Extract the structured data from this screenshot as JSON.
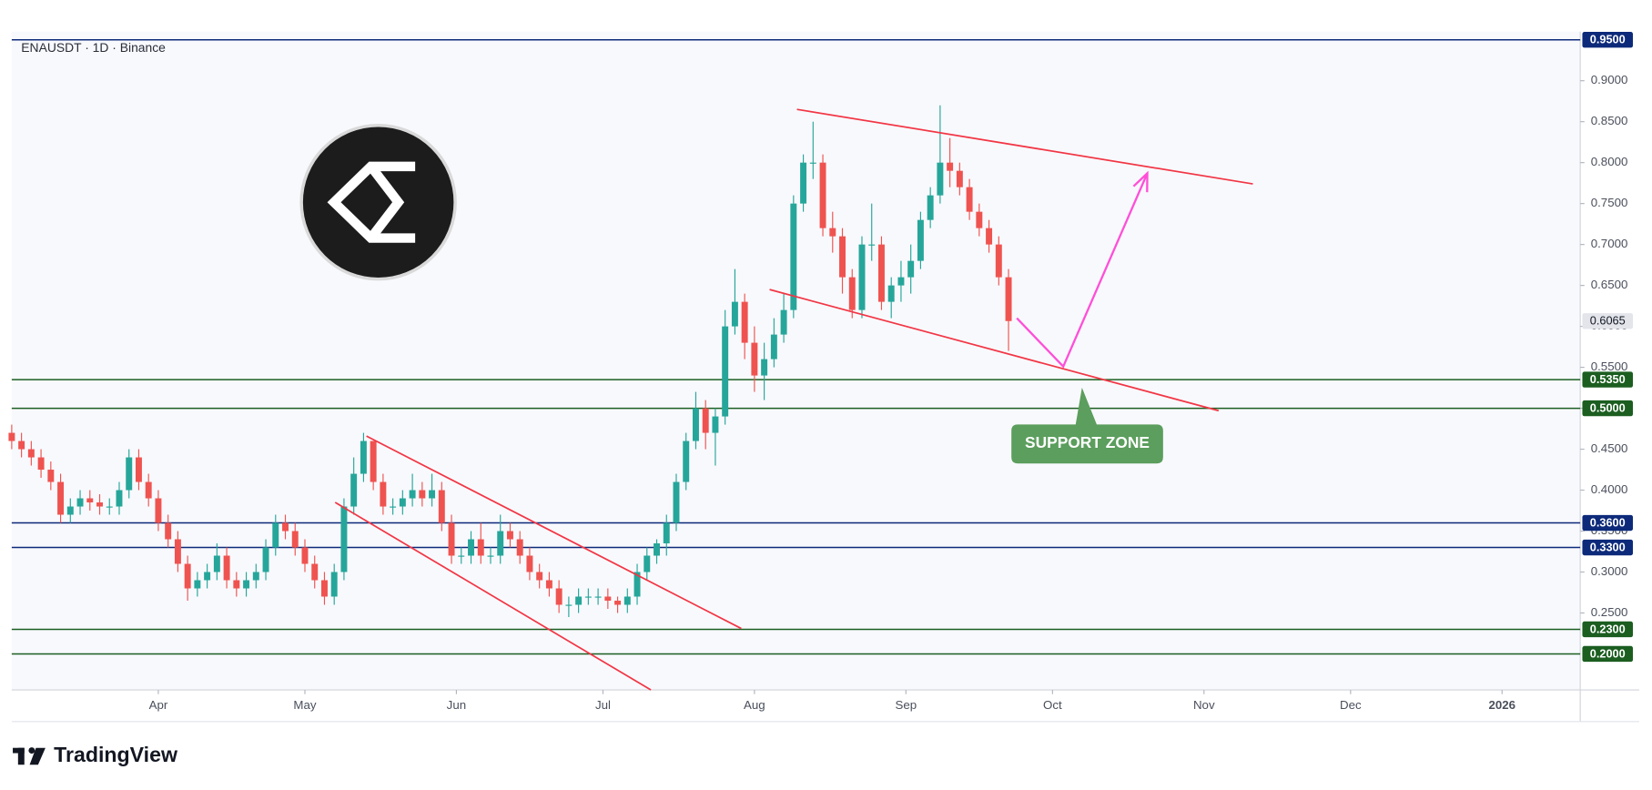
{
  "chart_data": {
    "type": "candlestick",
    "title": "ENAUSDT · 1D · Binance",
    "x": [
      0,
      2,
      4,
      6,
      8,
      10,
      12,
      14,
      16,
      18,
      20,
      22,
      24,
      26,
      28,
      30,
      32,
      34,
      36,
      38,
      40,
      42,
      44,
      46,
      48,
      50,
      52,
      54,
      56,
      58,
      60,
      62,
      64,
      66,
      68,
      70,
      72,
      74,
      76,
      78,
      80,
      82,
      84,
      86,
      88,
      90,
      92,
      94,
      96,
      98,
      100,
      102,
      104,
      106,
      108,
      110,
      112,
      114,
      116,
      118,
      120,
      122,
      124,
      126,
      128,
      130,
      132,
      134,
      136,
      138,
      140,
      142,
      144,
      146,
      148,
      150,
      152,
      154,
      156,
      158,
      160,
      162,
      164,
      166,
      168,
      170,
      172,
      174,
      176,
      178,
      180,
      182,
      184,
      186,
      188,
      190,
      192,
      194,
      196,
      198,
      200,
      202,
      204
    ],
    "open": [
      0.47,
      0.46,
      0.45,
      0.44,
      0.425,
      0.41,
      0.37,
      0.38,
      0.39,
      0.385,
      0.38,
      0.38,
      0.4,
      0.44,
      0.41,
      0.39,
      0.36,
      0.34,
      0.31,
      0.28,
      0.29,
      0.3,
      0.32,
      0.29,
      0.28,
      0.29,
      0.3,
      0.33,
      0.36,
      0.35,
      0.33,
      0.31,
      0.29,
      0.27,
      0.3,
      0.38,
      0.42,
      0.46,
      0.41,
      0.38,
      0.38,
      0.39,
      0.4,
      0.39,
      0.4,
      0.36,
      0.32,
      0.32,
      0.34,
      0.32,
      0.32,
      0.35,
      0.34,
      0.32,
      0.3,
      0.29,
      0.28,
      0.26,
      0.26,
      0.27,
      0.27,
      0.27,
      0.265,
      0.26,
      0.27,
      0.3,
      0.32,
      0.335,
      0.36,
      0.41,
      0.46,
      0.5,
      0.47,
      0.49,
      0.6,
      0.63,
      0.58,
      0.54,
      0.56,
      0.59,
      0.62,
      0.75,
      0.8,
      0.8,
      0.72,
      0.71,
      0.66,
      0.62,
      0.7,
      0.7,
      0.63,
      0.65,
      0.66,
      0.68,
      0.73,
      0.76,
      0.8,
      0.79,
      0.77,
      0.74,
      0.72,
      0.7,
      0.66
    ],
    "high": [
      0.48,
      0.47,
      0.46,
      0.45,
      0.435,
      0.42,
      0.39,
      0.4,
      0.4,
      0.395,
      0.39,
      0.41,
      0.45,
      0.45,
      0.42,
      0.4,
      0.37,
      0.35,
      0.32,
      0.3,
      0.31,
      0.335,
      0.33,
      0.3,
      0.3,
      0.31,
      0.34,
      0.37,
      0.37,
      0.36,
      0.34,
      0.32,
      0.3,
      0.31,
      0.39,
      0.44,
      0.47,
      0.46,
      0.42,
      0.39,
      0.4,
      0.42,
      0.41,
      0.42,
      0.41,
      0.37,
      0.33,
      0.35,
      0.36,
      0.33,
      0.37,
      0.36,
      0.35,
      0.33,
      0.31,
      0.3,
      0.29,
      0.27,
      0.28,
      0.28,
      0.28,
      0.28,
      0.27,
      0.28,
      0.31,
      0.33,
      0.34,
      0.37,
      0.42,
      0.47,
      0.52,
      0.51,
      0.5,
      0.62,
      0.67,
      0.64,
      0.6,
      0.58,
      0.61,
      0.64,
      0.76,
      0.81,
      0.85,
      0.81,
      0.74,
      0.72,
      0.67,
      0.71,
      0.75,
      0.71,
      0.66,
      0.68,
      0.7,
      0.74,
      0.77,
      0.87,
      0.83,
      0.8,
      0.78,
      0.75,
      0.73,
      0.71,
      0.67
    ],
    "low": [
      0.45,
      0.44,
      0.43,
      0.415,
      0.4,
      0.36,
      0.36,
      0.37,
      0.375,
      0.37,
      0.37,
      0.37,
      0.39,
      0.4,
      0.38,
      0.35,
      0.33,
      0.3,
      0.265,
      0.27,
      0.28,
      0.29,
      0.28,
      0.27,
      0.27,
      0.28,
      0.29,
      0.32,
      0.34,
      0.32,
      0.3,
      0.28,
      0.26,
      0.26,
      0.29,
      0.37,
      0.41,
      0.4,
      0.37,
      0.37,
      0.37,
      0.38,
      0.38,
      0.38,
      0.35,
      0.31,
      0.31,
      0.31,
      0.31,
      0.31,
      0.31,
      0.33,
      0.31,
      0.29,
      0.28,
      0.27,
      0.25,
      0.245,
      0.25,
      0.26,
      0.26,
      0.255,
      0.25,
      0.25,
      0.26,
      0.29,
      0.31,
      0.32,
      0.35,
      0.4,
      0.45,
      0.45,
      0.43,
      0.48,
      0.59,
      0.56,
      0.52,
      0.51,
      0.55,
      0.58,
      0.61,
      0.74,
      0.78,
      0.71,
      0.69,
      0.64,
      0.61,
      0.61,
      0.68,
      0.62,
      0.61,
      0.63,
      0.64,
      0.67,
      0.72,
      0.75,
      0.77,
      0.76,
      0.73,
      0.71,
      0.69,
      0.65,
      0.57
    ],
    "close": [
      0.46,
      0.45,
      0.44,
      0.425,
      0.41,
      0.37,
      0.38,
      0.39,
      0.385,
      0.38,
      0.38,
      0.4,
      0.44,
      0.41,
      0.39,
      0.36,
      0.34,
      0.31,
      0.28,
      0.29,
      0.3,
      0.32,
      0.29,
      0.28,
      0.29,
      0.3,
      0.33,
      0.36,
      0.35,
      0.33,
      0.31,
      0.29,
      0.27,
      0.3,
      0.38,
      0.42,
      0.46,
      0.41,
      0.38,
      0.38,
      0.39,
      0.4,
      0.39,
      0.4,
      0.36,
      0.32,
      0.32,
      0.34,
      0.32,
      0.32,
      0.35,
      0.34,
      0.32,
      0.3,
      0.29,
      0.28,
      0.26,
      0.26,
      0.27,
      0.27,
      0.27,
      0.265,
      0.26,
      0.27,
      0.3,
      0.32,
      0.335,
      0.36,
      0.41,
      0.46,
      0.5,
      0.47,
      0.49,
      0.6,
      0.63,
      0.58,
      0.54,
      0.56,
      0.59,
      0.62,
      0.75,
      0.8,
      0.8,
      0.72,
      0.71,
      0.66,
      0.62,
      0.7,
      0.7,
      0.63,
      0.65,
      0.66,
      0.68,
      0.73,
      0.76,
      0.8,
      0.79,
      0.77,
      0.74,
      0.72,
      0.7,
      0.66,
      0.6065
    ],
    "up_color": "#26a69a",
    "down_color": "#ef5350",
    "xlim": [
      0,
      321
    ],
    "ylim": [
      0.156,
      0.96
    ],
    "xticks": [
      {
        "value": 30,
        "label": "Apr"
      },
      {
        "value": 60,
        "label": "May"
      },
      {
        "value": 91,
        "label": "Jun"
      },
      {
        "value": 121,
        "label": "Jul"
      },
      {
        "value": 152,
        "label": "Aug"
      },
      {
        "value": 183,
        "label": "Sep"
      },
      {
        "value": 213,
        "label": "Oct"
      },
      {
        "value": 244,
        "label": "Nov"
      },
      {
        "value": 274,
        "label": "Dec"
      },
      {
        "value": 305,
        "label": "2026"
      }
    ],
    "yticks": [
      {
        "value": 0.25,
        "label": "0.2500"
      },
      {
        "value": 0.3,
        "label": "0.3000"
      },
      {
        "value": 0.35,
        "label": "0.3500"
      },
      {
        "value": 0.4,
        "label": "0.4000"
      },
      {
        "value": 0.45,
        "label": "0.4500"
      },
      {
        "value": 0.5,
        "label": "0.5000"
      },
      {
        "value": 0.55,
        "label": "0.5500"
      },
      {
        "value": 0.6,
        "label": "0.6000"
      },
      {
        "value": 0.65,
        "label": "0.6500"
      },
      {
        "value": 0.7,
        "label": "0.7000"
      },
      {
        "value": 0.75,
        "label": "0.7500"
      },
      {
        "value": 0.8,
        "label": "0.8000"
      },
      {
        "value": 0.85,
        "label": "0.8500"
      },
      {
        "value": 0.9,
        "label": "0.9000"
      }
    ],
    "levels": [
      {
        "value": 0.95,
        "label": "0.9500",
        "color": "#0d2a7a"
      },
      {
        "value": 0.535,
        "label": "0.5350",
        "color": "#1b5e20"
      },
      {
        "value": 0.5,
        "label": "0.5000",
        "color": "#1b5e20"
      },
      {
        "value": 0.36,
        "label": "0.3600",
        "color": "#0d2a7a"
      },
      {
        "value": 0.33,
        "label": "0.3300",
        "color": "#0d2a7a"
      },
      {
        "value": 0.23,
        "label": "0.2300",
        "color": "#1b5e20"
      },
      {
        "value": 0.2,
        "label": "0.2000",
        "color": "#1b5e20"
      }
    ],
    "last_price": {
      "value": 0.6065,
      "label": "0.6065"
    },
    "trendlines": [
      {
        "color": "#f23645",
        "points": [
          [
            160.7,
            0.865
          ],
          [
            254,
            0.774
          ]
        ]
      },
      {
        "color": "#f23645",
        "points": [
          [
            155.1,
            0.645
          ],
          [
            247,
            0.497
          ]
        ]
      },
      {
        "color": "#f23645",
        "points": [
          [
            72.6,
            0.466
          ],
          [
            149.3,
            0.231
          ]
        ]
      },
      {
        "color": "#f23645",
        "points": [
          [
            66.2,
            0.385
          ],
          [
            130.8,
            0.156
          ]
        ]
      }
    ],
    "projection": {
      "color": "#ff4fd8",
      "points": [
        [
          205.7,
          0.61
        ],
        [
          215.2,
          0.551
        ],
        [
          232.4,
          0.787
        ]
      ]
    },
    "annotation": "SUPPORT ZONE"
  },
  "brand": "TradingView"
}
